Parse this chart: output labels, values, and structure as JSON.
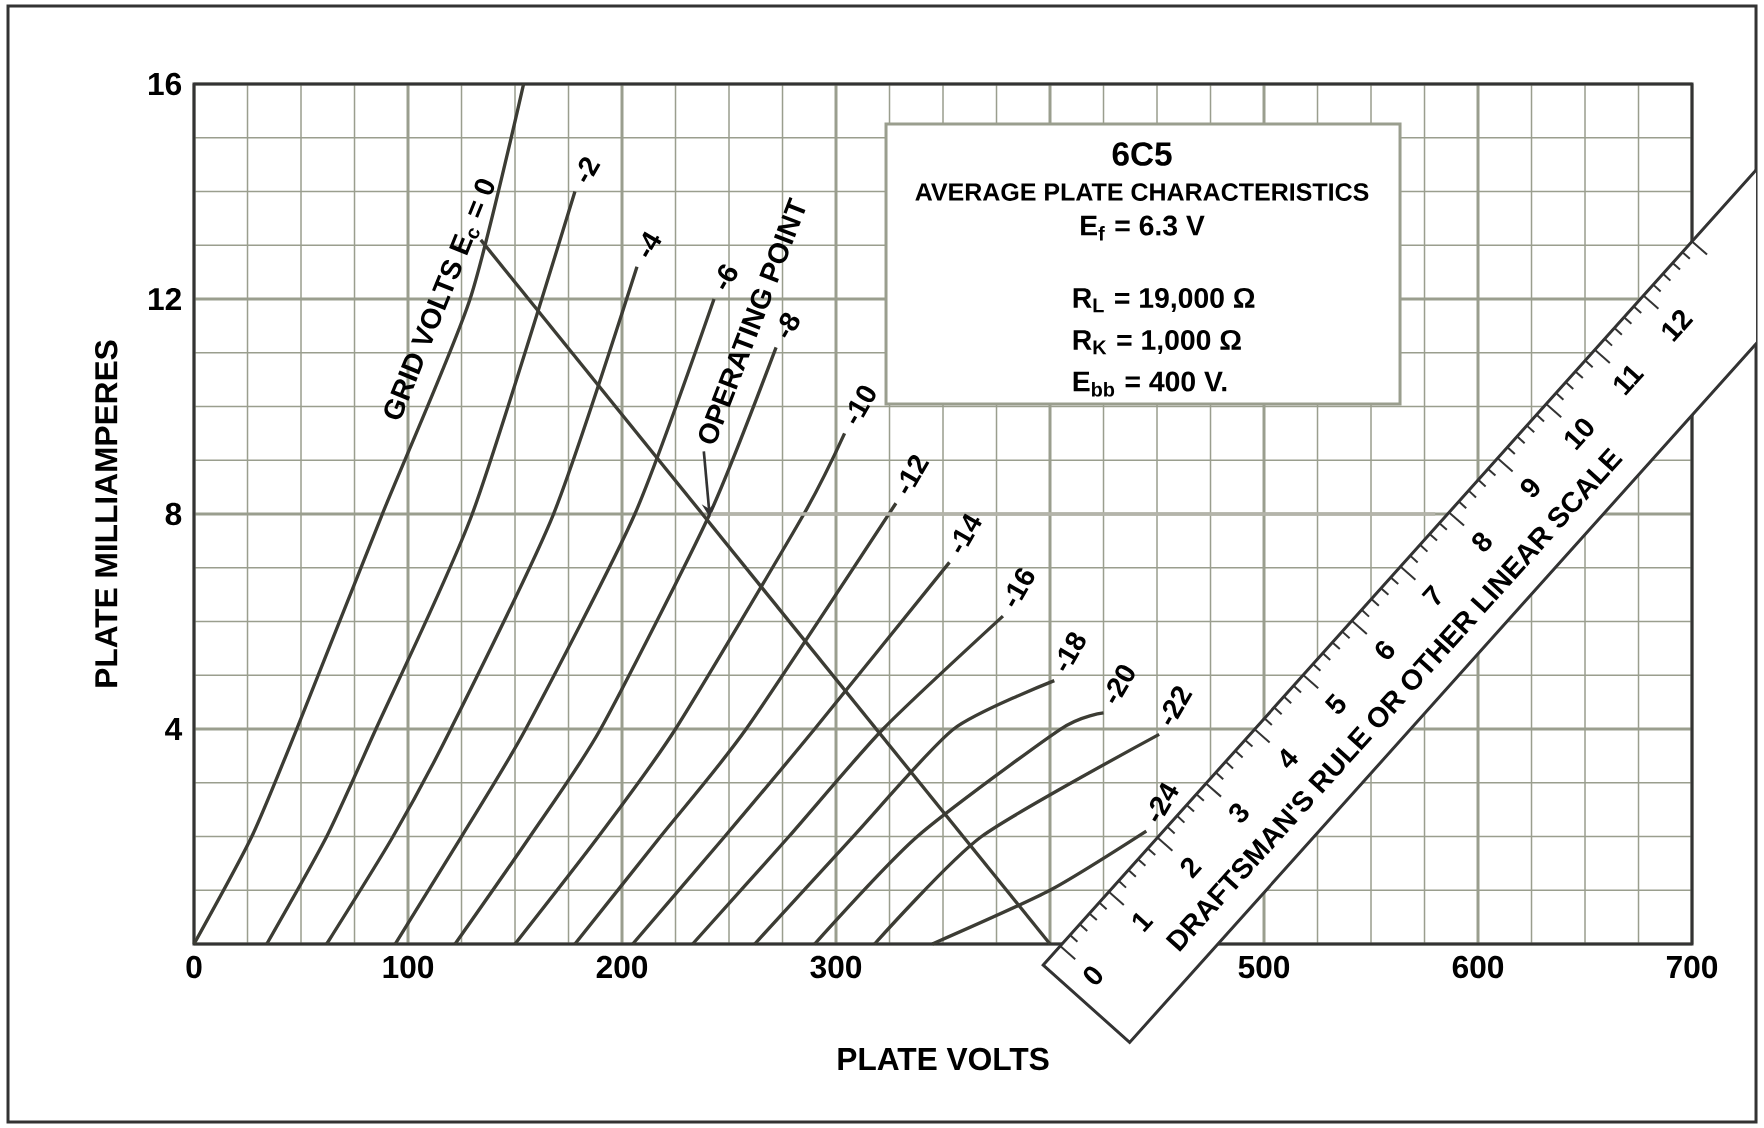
{
  "chart_data": {
    "type": "line",
    "title": "6C5",
    "subtitle": "AVERAGE PLATE CHARACTERISTICS",
    "xlabel": "PLATE VOLTS",
    "ylabel": "PLATE MILLIAMPERES",
    "xlim": [
      0,
      700
    ],
    "ylim": [
      0,
      16
    ],
    "xticks": [
      0,
      100,
      200,
      300,
      {
        "value": 400,
        "label": null
      },
      500,
      600,
      700
    ],
    "yticks": [
      {
        "value": 0,
        "label": null
      },
      4,
      8,
      12,
      16
    ],
    "grid": true,
    "annotations": [
      "E$_{f}$ = 6.3 V",
      "R$_{L}$ = 19,000 Ω",
      "R$_{K}$ = 1,000 Ω",
      "E$_{bb}$ = 400 V.",
      {
        "text": "OPERATING POINT",
        "x": 241,
        "y": 7.9
      },
      "DRAFTSMAN'S RULE OR OTHER LINEAR SCALE",
      "0",
      "1",
      "2",
      "3",
      "4",
      "5",
      "6",
      "7",
      "8",
      "9",
      "10",
      "11",
      "12"
    ],
    "series": [
      {
        "name": "GRID VOLTS E$_{c}$ = 0",
        "color": "#3c3c34",
        "x": [
          0,
          27,
          48,
          88,
          129,
          154
        ],
        "values": [
          0,
          2,
          4,
          8,
          12,
          16
        ]
      },
      {
        "name": "-2",
        "color": "#3c3c34",
        "x": [
          34,
          62,
          85,
          130,
          178
        ],
        "values": [
          0,
          2,
          4,
          8,
          14
        ]
      },
      {
        "name": "-4",
        "color": "#3c3c34",
        "x": [
          62,
          93,
          120,
          168,
          207
        ],
        "values": [
          0,
          2,
          4,
          8,
          12.6
        ]
      },
      {
        "name": "-6",
        "color": "#3c3c34",
        "x": [
          94,
          125,
          155,
          206,
          243
        ],
        "values": [
          0,
          2,
          4,
          8,
          12
        ]
      },
      {
        "name": "-8",
        "color": "#3c3c34",
        "x": [
          122,
          157,
          190,
          241,
          272
        ],
        "values": [
          0,
          2,
          4,
          8,
          11.1
        ]
      },
      {
        "name": "-10",
        "color": "#3c3c34",
        "x": [
          150,
          189,
          225,
          285,
          304
        ],
        "values": [
          0,
          2,
          4,
          8,
          9.5
        ]
      },
      {
        "name": "-12",
        "color": "#3c3c34",
        "x": [
          178,
          218,
          258,
          328
        ],
        "values": [
          0,
          2,
          4,
          8.2
        ]
      },
      {
        "name": "-14",
        "color": "#3c3c34",
        "x": [
          205,
          248,
          290,
          353
        ],
        "values": [
          0,
          2,
          4,
          7.1
        ]
      },
      {
        "name": "-16",
        "color": "#3c3c34",
        "x": [
          233,
          278,
          322,
          378
        ],
        "values": [
          0,
          2,
          4,
          6.1
        ]
      },
      {
        "name": "-18",
        "color": "#3c3c34",
        "x": [
          262,
          308,
          355,
          402
        ],
        "values": [
          0,
          2,
          4,
          4.9
        ]
      },
      {
        "name": "-20",
        "color": "#3c3c34",
        "x": [
          290,
          338,
          405,
          425
        ],
        "values": [
          0,
          2,
          4,
          4.3
        ]
      },
      {
        "name": "-22",
        "color": "#3c3c34",
        "x": [
          318,
          368,
          451
        ],
        "values": [
          0,
          2,
          3.9
        ]
      },
      {
        "name": "-24",
        "color": "#3c3c34",
        "x": [
          345,
          400,
          445
        ],
        "values": [
          0,
          1,
          2.1
        ]
      },
      {
        "color": "#3c3c34",
        "x": [
          134,
          400
        ],
        "values": [
          13.1,
          0
        ]
      },
      {
        "color": "#b4b4aa",
        "x": [
          241,
          580
        ],
        "values": [
          8,
          8
        ]
      }
    ]
  }
}
